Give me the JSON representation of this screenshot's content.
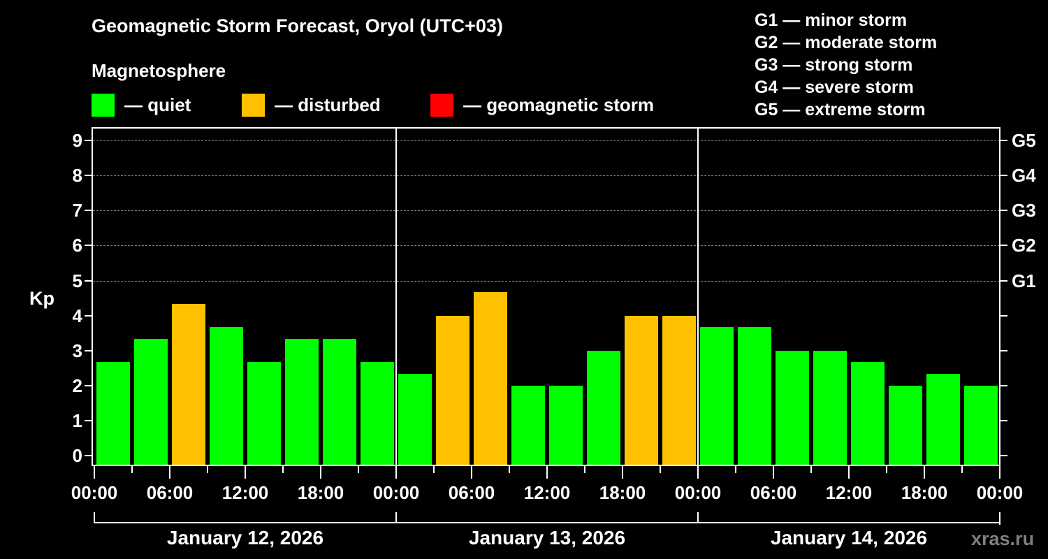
{
  "header": {
    "title": "Geomagnetic Storm Forecast, Oryol (UTC+03)",
    "subtitle": "Magnetosphere"
  },
  "legend": {
    "items": [
      {
        "label": "— quiet",
        "color": "#00ff00"
      },
      {
        "label": "— disturbed",
        "color": "#ffc000"
      },
      {
        "label": "— geomagnetic storm",
        "color": "#ff0000"
      }
    ]
  },
  "storm_scale": {
    "items": [
      "G1 — minor storm",
      "G2 — moderate storm",
      "G3 — strong storm",
      "G4 — severe storm",
      "G5 — extreme storm"
    ]
  },
  "axes": {
    "ylabel": "Kp",
    "yticks": [
      "0",
      "1",
      "2",
      "3",
      "4",
      "5",
      "6",
      "7",
      "8",
      "9"
    ],
    "right_ticks": [
      "G1",
      "G2",
      "G3",
      "G4",
      "G5"
    ],
    "xticks": [
      "00:00",
      "06:00",
      "12:00",
      "18:00",
      "00:00",
      "06:00",
      "12:00",
      "18:00",
      "00:00",
      "06:00",
      "12:00",
      "18:00",
      "00:00"
    ],
    "days": [
      "January 12, 2026",
      "January 13, 2026",
      "January 14, 2026"
    ]
  },
  "watermark": "xras.ru",
  "chart_data": {
    "type": "bar",
    "title": "Geomagnetic Storm Forecast, Oryol (UTC+03)",
    "xlabel": "",
    "ylabel": "Kp",
    "ylim": [
      0,
      9
    ],
    "grid": "dashed horizontal lines at Kp 5-9",
    "legend_position": "top",
    "categories": [
      "Jan 12 00-03",
      "Jan 12 03-06",
      "Jan 12 06-09",
      "Jan 12 09-12",
      "Jan 12 12-15",
      "Jan 12 15-18",
      "Jan 12 18-21",
      "Jan 12 21-24",
      "Jan 13 00-03",
      "Jan 13 03-06",
      "Jan 13 06-09",
      "Jan 13 09-12",
      "Jan 13 12-15",
      "Jan 13 15-18",
      "Jan 13 18-21",
      "Jan 13 21-24",
      "Jan 14 00-03",
      "Jan 14 03-06",
      "Jan 14 06-09",
      "Jan 14 09-12",
      "Jan 14 12-15",
      "Jan 14 15-18",
      "Jan 14 18-21",
      "Jan 14 21-24"
    ],
    "values": [
      2.67,
      3.33,
      4.33,
      3.67,
      2.67,
      3.33,
      3.33,
      2.67,
      2.33,
      4.0,
      4.67,
      2.0,
      2.0,
      3.0,
      4.0,
      4.0,
      3.67,
      3.67,
      3.0,
      3.0,
      2.67,
      2.0,
      2.33,
      2.0
    ],
    "status": [
      "quiet",
      "quiet",
      "disturbed",
      "quiet",
      "quiet",
      "quiet",
      "quiet",
      "quiet",
      "quiet",
      "disturbed",
      "disturbed",
      "quiet",
      "quiet",
      "quiet",
      "disturbed",
      "disturbed",
      "quiet",
      "quiet",
      "quiet",
      "quiet",
      "quiet",
      "quiet",
      "quiet",
      "quiet"
    ],
    "colors": {
      "quiet": "#00ff00",
      "disturbed": "#ffc000",
      "storm": "#ff0000"
    },
    "right_axis": {
      "G1": 5,
      "G2": 6,
      "G3": 7,
      "G4": 8,
      "G5": 9
    }
  }
}
